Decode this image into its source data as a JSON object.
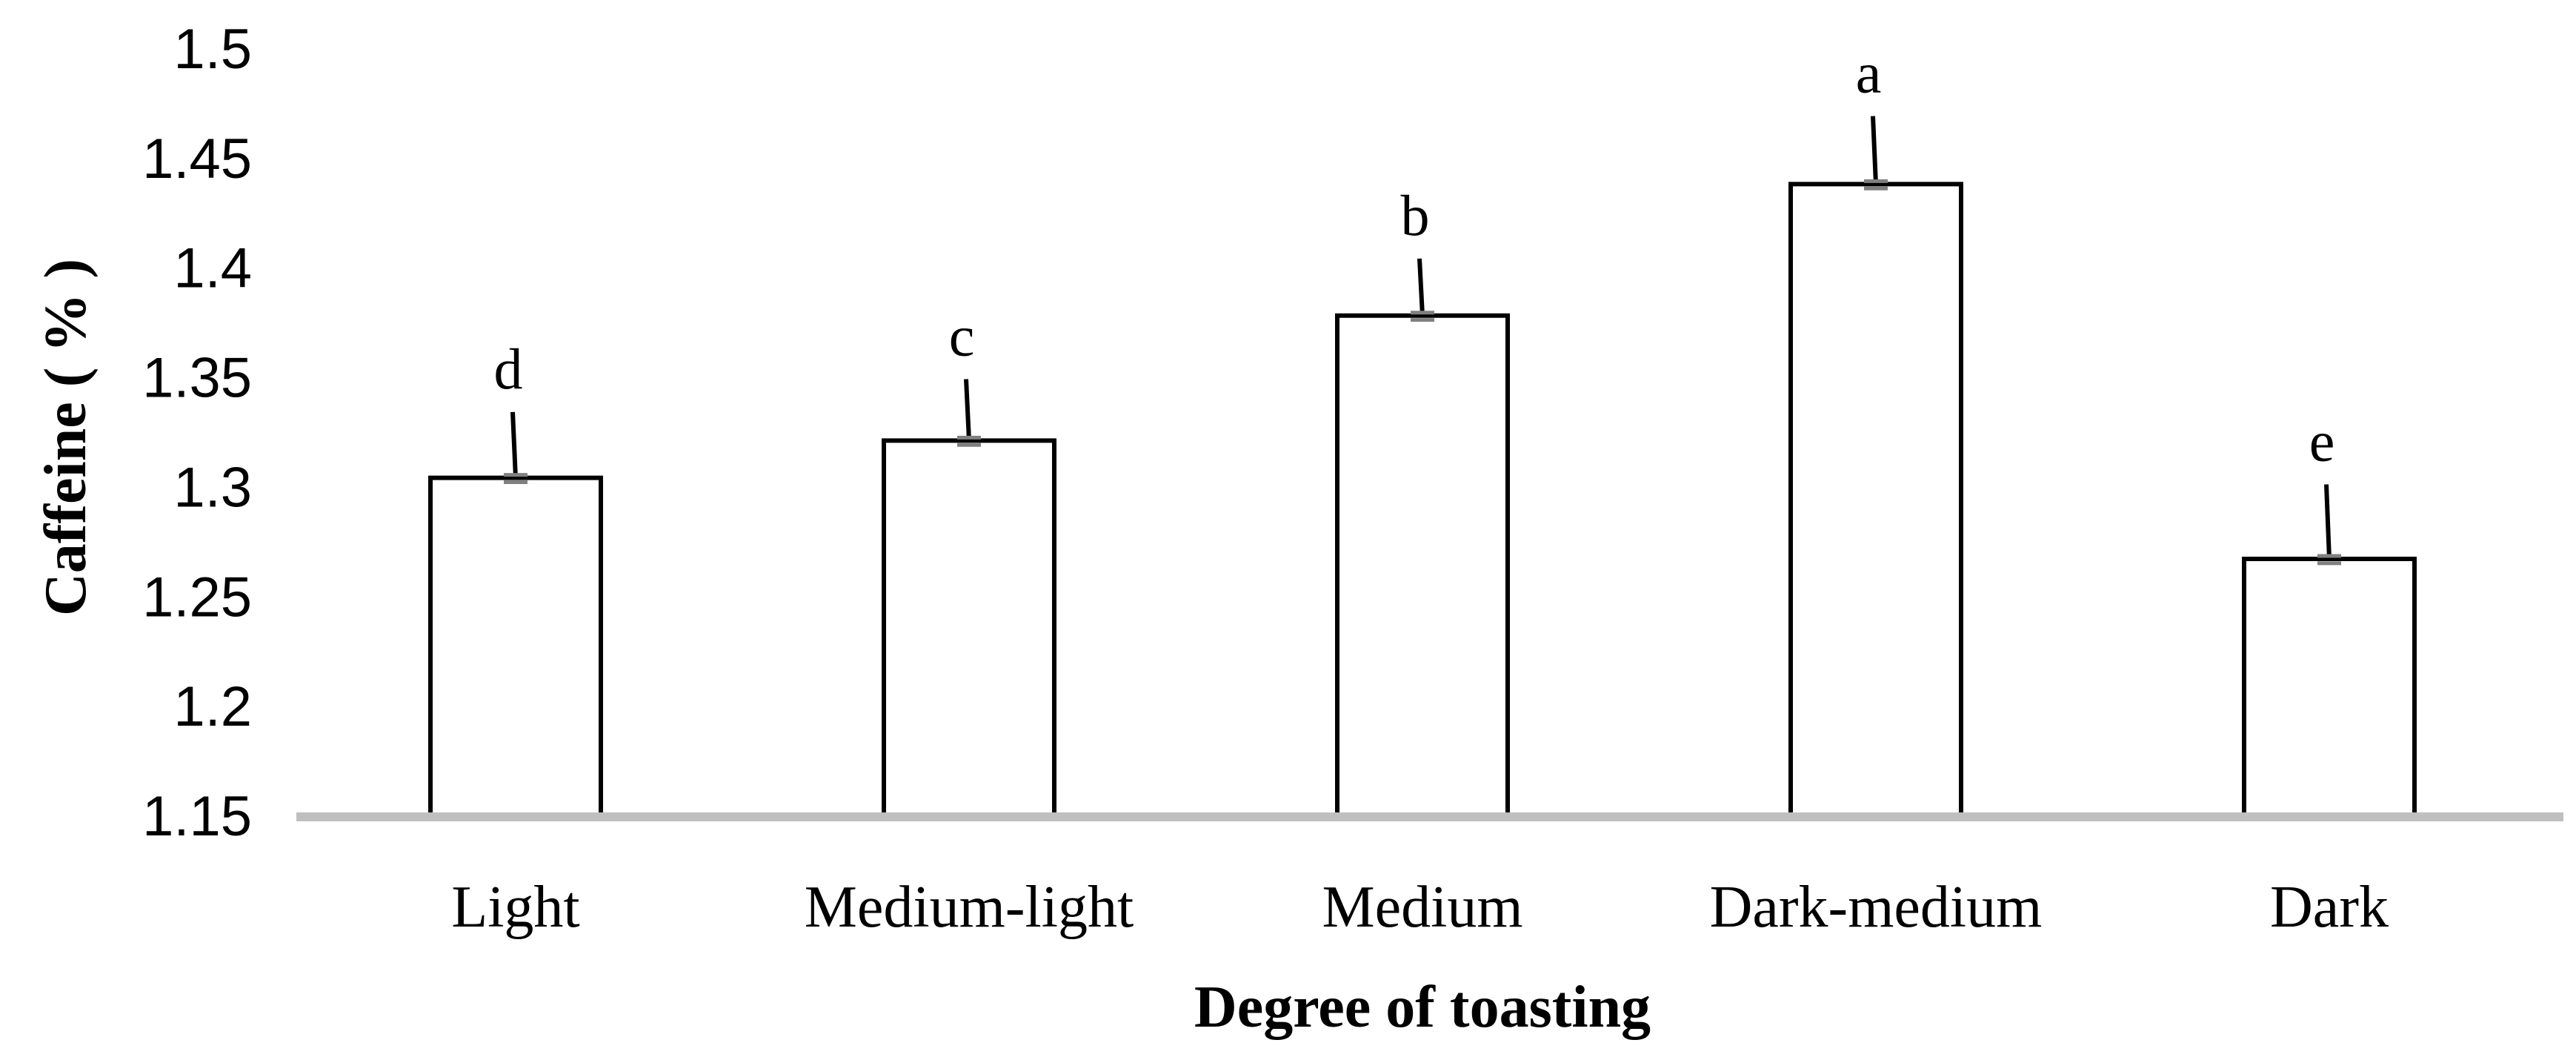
{
  "chart_data": {
    "type": "bar",
    "title": "",
    "xlabel": "Degree of toasting",
    "ylabel": "Caffeine ( % )",
    "ylim": [
      1.15,
      1.5
    ],
    "yticks": [
      "1.15",
      "1.2",
      "1.25",
      "1.3",
      "1.35",
      "1.4",
      "1.45",
      "1.5"
    ],
    "grid": false,
    "legend": "none",
    "categories": [
      "Light",
      "Medium-light",
      "Medium",
      "Dark-medium",
      "Dark"
    ],
    "values": [
      1.304,
      1.321,
      1.378,
      1.438,
      1.267
    ],
    "error_low": [
      1.302,
      1.319,
      1.376,
      1.436,
      1.265
    ],
    "error_high": [
      1.334,
      1.349,
      1.404,
      1.469,
      1.301
    ],
    "significance_letters": [
      "d",
      "c",
      "b",
      "a",
      "e"
    ],
    "colors": {
      "bar_fill": "#ffffff",
      "bar_stroke": "#000000",
      "axis_line": "#bfbfbf",
      "error_cap": "#808080",
      "text": "#000000"
    }
  }
}
